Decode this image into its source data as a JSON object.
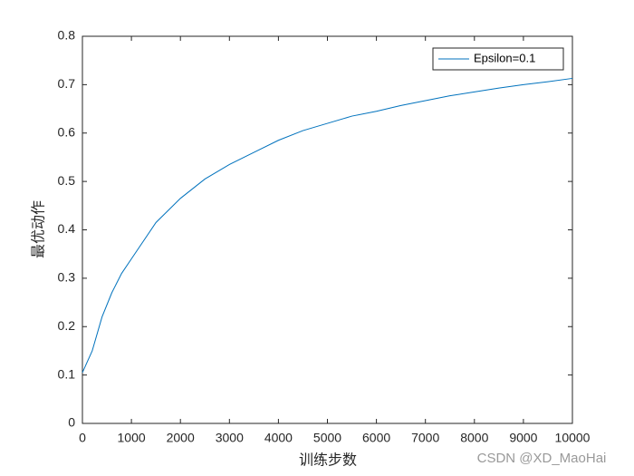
{
  "chart_data": {
    "type": "line",
    "xlabel": "训练步数",
    "ylabel": "最优动作",
    "x": [
      0,
      200,
      400,
      600,
      800,
      1000,
      1500,
      2000,
      2500,
      3000,
      3500,
      4000,
      4500,
      5000,
      5500,
      6000,
      6500,
      7000,
      7500,
      8000,
      8500,
      9000,
      9500,
      10000
    ],
    "series": [
      {
        "name": "Epsilon=0.1",
        "color": "#0072bd",
        "values": [
          0.105,
          0.15,
          0.22,
          0.27,
          0.31,
          0.34,
          0.415,
          0.465,
          0.505,
          0.535,
          0.56,
          0.585,
          0.605,
          0.62,
          0.635,
          0.645,
          0.657,
          0.667,
          0.677,
          0.685,
          0.693,
          0.7,
          0.706,
          0.713
        ]
      }
    ],
    "xlim": [
      0,
      10000
    ],
    "xticks": [
      0,
      1000,
      2000,
      3000,
      4000,
      5000,
      6000,
      7000,
      8000,
      9000,
      10000
    ],
    "ylim": [
      0,
      0.8
    ],
    "yticks": [
      0,
      0.1,
      0.2,
      0.3,
      0.4,
      0.5,
      0.6,
      0.7,
      0.8
    ],
    "legend": "northeast",
    "grid": false
  },
  "watermark": "CSDN @XD_MaoHai"
}
